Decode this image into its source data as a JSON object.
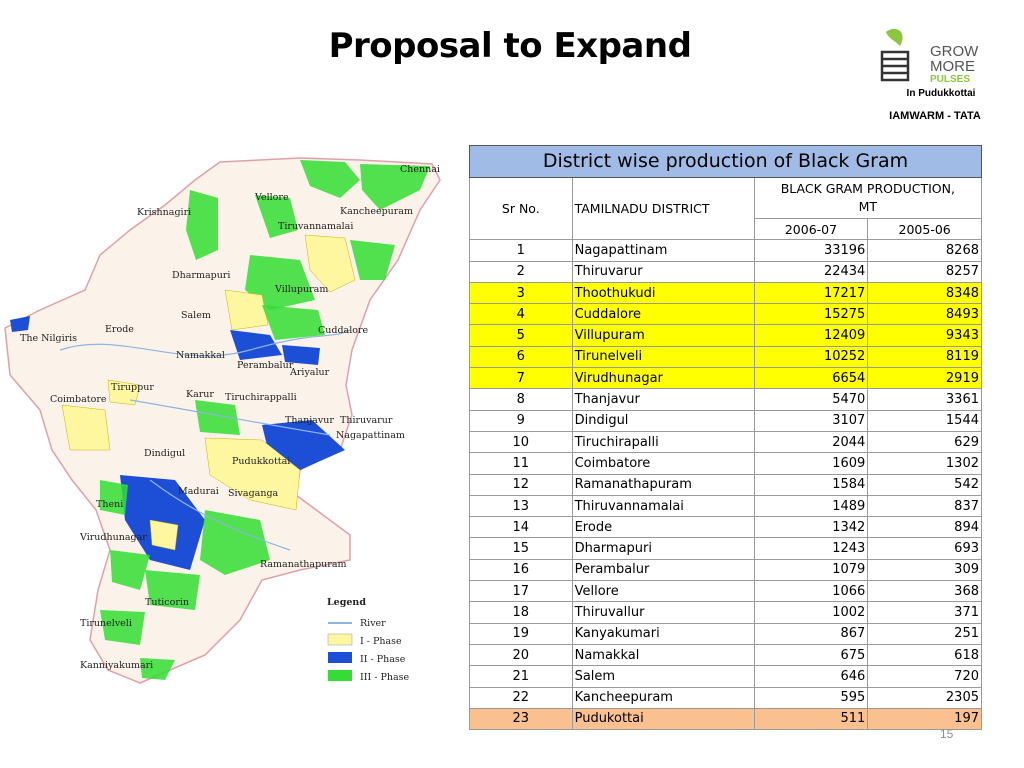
{
  "slide": {
    "title": "Proposal to Expand",
    "page_number": "15"
  },
  "logo": {
    "lines": [
      "GROW",
      "MORE",
      "PULSES"
    ],
    "location": "In Pudukkottai",
    "org": "IAMWARM - TATA"
  },
  "map": {
    "districts": [
      "Chennai",
      "Vellore",
      "Kancheepuram",
      "Krishnagiri",
      "Tiruvannamalai",
      "Dharmapuri",
      "Villupuram",
      "Salem",
      "Cuddalore",
      "Erode",
      "The Nilgiris",
      "Namakkal",
      "Perambalur",
      "Ariyalur",
      "Tiruppur",
      "Karur",
      "Tiruchirappalli",
      "Coimbatore",
      "Thanjavur",
      "Thiruvarur",
      "Nagapattinam",
      "Dindigul",
      "Pudukkottai",
      "Theni",
      "Madurai",
      "Sivaganga",
      "Virudhunagar",
      "Ramanathapuram",
      "Tuticorin",
      "Tirunelveli",
      "Kanniyakumari"
    ],
    "legend": {
      "title": "Legend",
      "items": [
        {
          "label": "River",
          "color": "#8db4e2"
        },
        {
          "label": "I - Phase",
          "color": "#fff7a0"
        },
        {
          "label": "II - Phase",
          "color": "#1c4fd6"
        },
        {
          "label": "III - Phase",
          "color": "#33dd33"
        }
      ]
    }
  },
  "table": {
    "caption": "District wise production of Black Gram",
    "col_sr": "Sr No.",
    "col_district": "TAMILNADU DISTRICT",
    "col_prod_line1": "BLACK GRAM PRODUCTION,",
    "col_prod_line2": "MT",
    "col_y1": "2006-07",
    "col_y2": "2005-06",
    "rows": [
      {
        "sr": "1",
        "district": "Nagapattinam",
        "y1": "33196",
        "y2": "8268",
        "hl": ""
      },
      {
        "sr": "2",
        "district": "Thiruvarur",
        "y1": "22434",
        "y2": "8257",
        "hl": ""
      },
      {
        "sr": "3",
        "district": "Thoothukudi",
        "y1": "17217",
        "y2": "8348",
        "hl": "yellow"
      },
      {
        "sr": "4",
        "district": "Cuddalore",
        "y1": "15275",
        "y2": "8493",
        "hl": "yellow"
      },
      {
        "sr": "5",
        "district": "Villupuram",
        "y1": "12409",
        "y2": "9343",
        "hl": "yellow"
      },
      {
        "sr": "6",
        "district": "Tirunelveli",
        "y1": "10252",
        "y2": "8119",
        "hl": "yellow"
      },
      {
        "sr": "7",
        "district": "Virudhunagar",
        "y1": "6654",
        "y2": "2919",
        "hl": "yellow"
      },
      {
        "sr": "8",
        "district": "Thanjavur",
        "y1": "5470",
        "y2": "3361",
        "hl": ""
      },
      {
        "sr": "9",
        "district": "Dindigul",
        "y1": "3107",
        "y2": "1544",
        "hl": ""
      },
      {
        "sr": "10",
        "district": "Tiruchirapalli",
        "y1": "2044",
        "y2": "629",
        "hl": ""
      },
      {
        "sr": "11",
        "district": "Coimbatore",
        "y1": "1609",
        "y2": "1302",
        "hl": ""
      },
      {
        "sr": "12",
        "district": "Ramanathapuram",
        "y1": "1584",
        "y2": "542",
        "hl": ""
      },
      {
        "sr": "13",
        "district": "Thiruvannamalai",
        "y1": "1489",
        "y2": "837",
        "hl": ""
      },
      {
        "sr": "14",
        "district": "Erode",
        "y1": "1342",
        "y2": "894",
        "hl": ""
      },
      {
        "sr": "15",
        "district": "Dharmapuri",
        "y1": "1243",
        "y2": "693",
        "hl": ""
      },
      {
        "sr": "16",
        "district": "Perambalur",
        "y1": "1079",
        "y2": "309",
        "hl": ""
      },
      {
        "sr": "17",
        "district": "Vellore",
        "y1": "1066",
        "y2": "368",
        "hl": ""
      },
      {
        "sr": "18",
        "district": "Thiruvallur",
        "y1": "1002",
        "y2": "371",
        "hl": ""
      },
      {
        "sr": "19",
        "district": "Kanyakumari",
        "y1": "867",
        "y2": "251",
        "hl": ""
      },
      {
        "sr": "20",
        "district": "Namakkal",
        "y1": "675",
        "y2": "618",
        "hl": ""
      },
      {
        "sr": "21",
        "district": "Salem",
        "y1": "646",
        "y2": "720",
        "hl": ""
      },
      {
        "sr": "22",
        "district": "Kancheepuram",
        "y1": "595",
        "y2": "2305",
        "hl": ""
      },
      {
        "sr": "23",
        "district": "Pudukottai",
        "y1": "511",
        "y2": "197",
        "hl": "orange"
      }
    ]
  },
  "colors": {
    "caption_bg": "#9fbbe6",
    "highlight_yellow": "#ffff00",
    "highlight_orange": "#fac090",
    "phase1": "#fff7a0",
    "phase2": "#1c4fd6",
    "phase3": "#33dd33"
  }
}
